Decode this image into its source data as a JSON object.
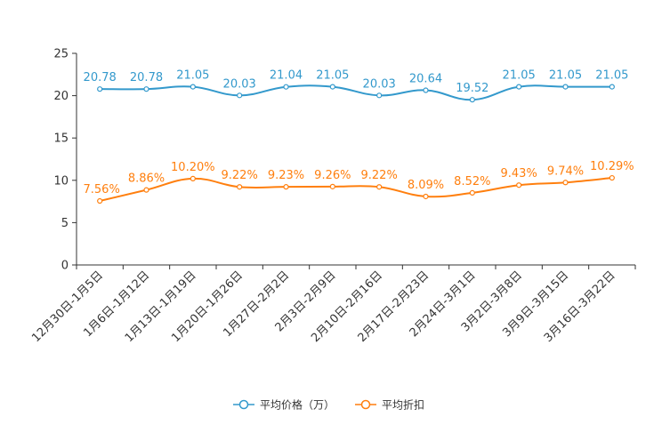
{
  "chart_data": {
    "type": "line",
    "categories": [
      "12月30日-1月5日",
      "1月6日-1月12日",
      "1月13日-1月19日",
      "1月20日-1月26日",
      "1月27日-2月2日",
      "2月3日-2月9日",
      "2月10日-2月16日",
      "2月17日-2月23日",
      "2月24日-3月1日",
      "3月2日-3月8日",
      "3月9日-3月15日",
      "3月16日-3月22日"
    ],
    "series": [
      {
        "name": "平均价格（万）",
        "color": "#3399cc",
        "values": [
          20.78,
          20.78,
          21.05,
          20.03,
          21.04,
          21.05,
          20.03,
          20.64,
          19.52,
          21.05,
          21.05,
          21.05
        ],
        "labels": [
          "20.78",
          "20.78",
          "21.05",
          "20.03",
          "21.04",
          "21.05",
          "20.03",
          "20.64",
          "19.52",
          "21.05",
          "21.05",
          "21.05"
        ]
      },
      {
        "name": "平均折扣",
        "color": "#ff7f0e",
        "values": [
          7.56,
          8.86,
          10.2,
          9.22,
          9.23,
          9.26,
          9.22,
          8.09,
          8.52,
          9.43,
          9.74,
          10.29
        ],
        "labels": [
          "7.56%",
          "8.86%",
          "10.20%",
          "9.22%",
          "9.23%",
          "9.26%",
          "9.22%",
          "8.09%",
          "8.52%",
          "9.43%",
          "9.74%",
          "10.29%"
        ]
      }
    ],
    "yticks": [
      "0",
      "5",
      "10",
      "15",
      "20",
      "25"
    ],
    "ylim": [
      0,
      25
    ],
    "title": "",
    "xlabel": "",
    "ylabel": "",
    "legend_position": "bottom-center"
  }
}
